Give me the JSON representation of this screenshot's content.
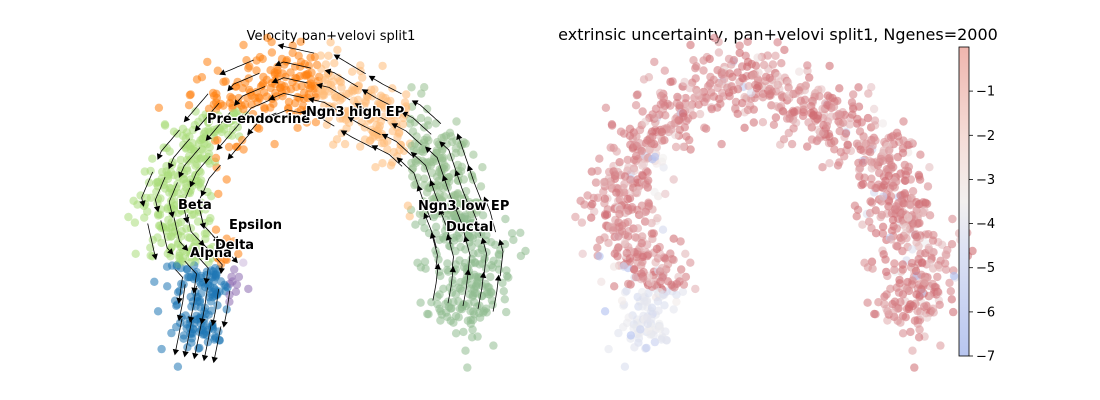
{
  "figure": {
    "left_panel": {
      "title": "Velocity pan+velovi split1"
    },
    "right_panel": {
      "title": "extrinsic uncertainty, pan+velovi split1, Ngenes=2000"
    }
  },
  "chart_data": [
    {
      "type": "scatter",
      "subtype": "embedding-with-velocity-streamlines",
      "title": "Velocity pan+velovi split1",
      "axes_visible": false,
      "grid": false,
      "legend": "cluster names drawn on plot",
      "clusters": [
        {
          "name": "Pre-endocrine",
          "color": "#ff7f0e"
        },
        {
          "name": "Ngn3 high EP",
          "color": "#ffbb78"
        },
        {
          "name": "Ngn3 low EP",
          "color": "#98c08f"
        },
        {
          "name": "Ductal",
          "color": "#8fbc8f"
        },
        {
          "name": "Beta",
          "color": "#aadc7a"
        },
        {
          "name": "Alpha",
          "color": "#1f77b4"
        },
        {
          "name": "Delta",
          "color": "#8c6bb1"
        },
        {
          "name": "Epsilon",
          "color": "#cbb6db"
        }
      ]
    },
    {
      "type": "scatter",
      "subtype": "embedding-colored-by-value",
      "title": "extrinsic uncertainty, pan+velovi split1, Ngenes=2000",
      "axes_visible": false,
      "grid": false,
      "colorbar": {
        "ticks": [
          -1,
          -2,
          -3,
          -4,
          -5,
          -6,
          -7
        ],
        "tick_labels": [
          "−1",
          "−2",
          "−3",
          "−4",
          "−5",
          "−6",
          "−7"
        ],
        "range": [
          -7,
          0
        ],
        "colors": {
          "low": "#b4c3f0",
          "mid": "#f2f2f2",
          "high": "#f0b8b0"
        }
      },
      "value_range_shown": [
        -7,
        0
      ],
      "dominant_value": -1
    }
  ]
}
